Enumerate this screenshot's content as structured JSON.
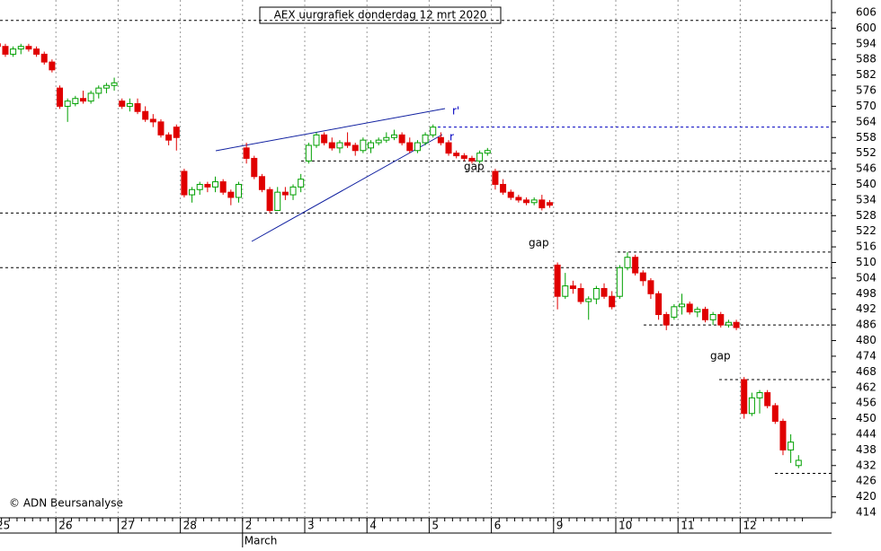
{
  "chart_data": {
    "type": "candlestick",
    "title": "AEX uurgrafiek donderdag 12 mrt 2020",
    "credit": "© ADN Beursanalyse",
    "x_sublabel": "March",
    "up_color": "#00a000",
    "down_color": "#e00000",
    "categories": [
      "25",
      null,
      null,
      null,
      null,
      null,
      null,
      null,
      "26",
      null,
      null,
      null,
      null,
      null,
      null,
      null,
      "27",
      null,
      null,
      null,
      null,
      null,
      null,
      null,
      "28",
      null,
      null,
      null,
      null,
      null,
      null,
      null,
      "2",
      null,
      null,
      null,
      null,
      null,
      null,
      null,
      "3",
      null,
      null,
      null,
      null,
      null,
      null,
      null,
      "4",
      null,
      null,
      null,
      null,
      null,
      null,
      null,
      "5",
      null,
      null,
      null,
      null,
      null,
      null,
      null,
      "6",
      null,
      null,
      null,
      null,
      null,
      null,
      null,
      "9",
      null,
      null,
      null,
      null,
      null,
      null,
      null,
      "10",
      null,
      null,
      null,
      null,
      null,
      null,
      null,
      "11",
      null,
      null,
      null,
      null,
      null,
      null,
      null,
      "12",
      null,
      null,
      null,
      null,
      null,
      null,
      null
    ],
    "candles": [
      [
        594,
        595,
        592,
        593
      ],
      [
        593,
        594,
        589,
        590
      ],
      [
        590,
        593,
        589,
        592
      ],
      [
        592,
        594,
        590,
        593
      ],
      [
        593,
        594,
        591,
        592
      ],
      [
        592,
        593,
        589,
        590
      ],
      [
        590,
        591,
        586,
        587
      ],
      [
        587,
        588,
        583,
        584
      ],
      [
        577,
        578,
        569,
        570
      ],
      [
        570,
        573,
        564,
        572
      ],
      [
        571,
        574,
        570,
        573
      ],
      [
        573,
        576,
        571,
        572
      ],
      [
        572,
        576,
        571,
        575
      ],
      [
        575,
        578,
        573,
        577
      ],
      [
        577,
        579,
        575,
        578
      ],
      [
        578,
        581,
        576,
        579
      ],
      [
        572,
        573,
        569,
        570
      ],
      [
        570,
        573,
        568,
        571
      ],
      [
        571,
        573,
        567,
        568
      ],
      [
        568,
        570,
        564,
        565
      ],
      [
        565,
        567,
        562,
        564
      ],
      [
        564,
        565,
        558,
        559
      ],
      [
        559,
        560,
        555,
        557
      ],
      [
        562,
        563,
        553,
        558
      ],
      [
        545,
        546,
        535,
        536
      ],
      [
        536,
        539,
        533,
        538
      ],
      [
        538,
        541,
        536,
        540
      ],
      [
        540,
        541,
        537,
        539
      ],
      [
        539,
        543,
        537,
        541
      ],
      [
        541,
        542,
        536,
        537
      ],
      [
        537,
        538,
        532,
        535
      ],
      [
        535,
        541,
        533,
        540
      ],
      [
        554,
        556,
        548,
        550
      ],
      [
        550,
        551,
        542,
        543
      ],
      [
        543,
        544,
        537,
        538
      ],
      [
        538,
        539,
        529,
        530
      ],
      [
        530,
        539,
        530,
        537
      ],
      [
        537,
        539,
        534,
        536
      ],
      [
        536,
        540,
        534,
        539
      ],
      [
        539,
        544,
        537,
        542
      ],
      [
        549,
        556,
        548,
        555
      ],
      [
        555,
        560,
        554,
        559
      ],
      [
        559,
        560,
        555,
        556
      ],
      [
        556,
        558,
        553,
        554
      ],
      [
        554,
        557,
        552,
        556
      ],
      [
        556,
        560,
        554,
        555
      ],
      [
        555,
        556,
        551,
        553
      ],
      [
        553,
        558,
        552,
        557
      ],
      [
        554,
        557,
        552,
        556
      ],
      [
        556,
        558,
        555,
        557
      ],
      [
        557,
        560,
        556,
        558
      ],
      [
        558,
        561,
        557,
        559
      ],
      [
        559,
        560,
        555,
        556
      ],
      [
        556,
        558,
        552,
        553
      ],
      [
        553,
        557,
        552,
        556
      ],
      [
        556,
        560,
        555,
        559
      ],
      [
        559,
        563,
        558,
        562
      ],
      [
        558,
        560,
        555,
        556
      ],
      [
        556,
        557,
        551,
        552
      ],
      [
        552,
        553,
        550,
        551
      ],
      [
        551,
        552,
        549,
        550
      ],
      [
        550,
        551,
        548,
        549
      ],
      [
        549,
        553,
        548,
        552
      ],
      [
        552,
        554,
        551,
        553
      ],
      [
        545,
        546,
        538,
        540
      ],
      [
        540,
        542,
        536,
        537
      ],
      [
        537,
        538,
        534,
        535
      ],
      [
        535,
        536,
        533,
        534
      ],
      [
        534,
        535,
        532,
        533
      ],
      [
        533,
        535,
        532,
        534
      ],
      [
        534,
        536,
        530,
        531
      ],
      [
        533,
        534,
        531,
        532
      ],
      [
        509,
        510,
        492,
        497
      ],
      [
        497,
        506,
        496,
        501
      ],
      [
        501,
        503,
        498,
        500
      ],
      [
        500,
        502,
        494,
        495
      ],
      [
        495,
        497,
        488,
        496
      ],
      [
        496,
        501,
        494,
        500
      ],
      [
        500,
        502,
        496,
        497
      ],
      [
        497,
        499,
        492,
        493
      ],
      [
        497,
        509,
        496,
        508
      ],
      [
        508,
        514,
        507,
        512
      ],
      [
        512,
        513,
        505,
        506
      ],
      [
        506,
        507,
        501,
        503
      ],
      [
        503,
        504,
        496,
        498
      ],
      [
        498,
        499,
        488,
        490
      ],
      [
        490,
        491,
        484,
        486
      ],
      [
        489,
        494,
        488,
        493
      ],
      [
        493,
        498,
        490,
        494
      ],
      [
        494,
        495,
        490,
        491
      ],
      [
        491,
        493,
        489,
        492
      ],
      [
        492,
        493,
        487,
        488
      ],
      [
        488,
        491,
        486,
        490
      ],
      [
        490,
        491,
        485,
        486
      ],
      [
        486,
        488,
        485,
        487
      ],
      [
        487,
        488,
        484,
        485
      ],
      [
        465,
        466,
        450,
        452
      ],
      [
        452,
        460,
        451,
        458
      ],
      [
        458,
        461,
        452,
        460
      ],
      [
        460,
        461,
        454,
        455
      ],
      [
        455,
        456,
        448,
        449
      ],
      [
        449,
        450,
        436,
        438
      ],
      [
        438,
        444,
        433,
        441
      ],
      [
        432,
        436,
        431,
        434
      ]
    ],
    "levels": [
      603,
      562,
      549,
      545,
      529,
      514,
      508,
      486,
      465,
      429
    ],
    "annotations": [
      "r'",
      "r",
      "gap",
      "gap",
      "gap"
    ],
    "ylim": [
      414,
      606
    ],
    "yticks": [
      414,
      420,
      426,
      432,
      438,
      444,
      450,
      456,
      462,
      468,
      474,
      480,
      486,
      492,
      498,
      504,
      510,
      516,
      522,
      528,
      534,
      540,
      546,
      552,
      558,
      564,
      570,
      576,
      582,
      588,
      594,
      600,
      606
    ]
  }
}
